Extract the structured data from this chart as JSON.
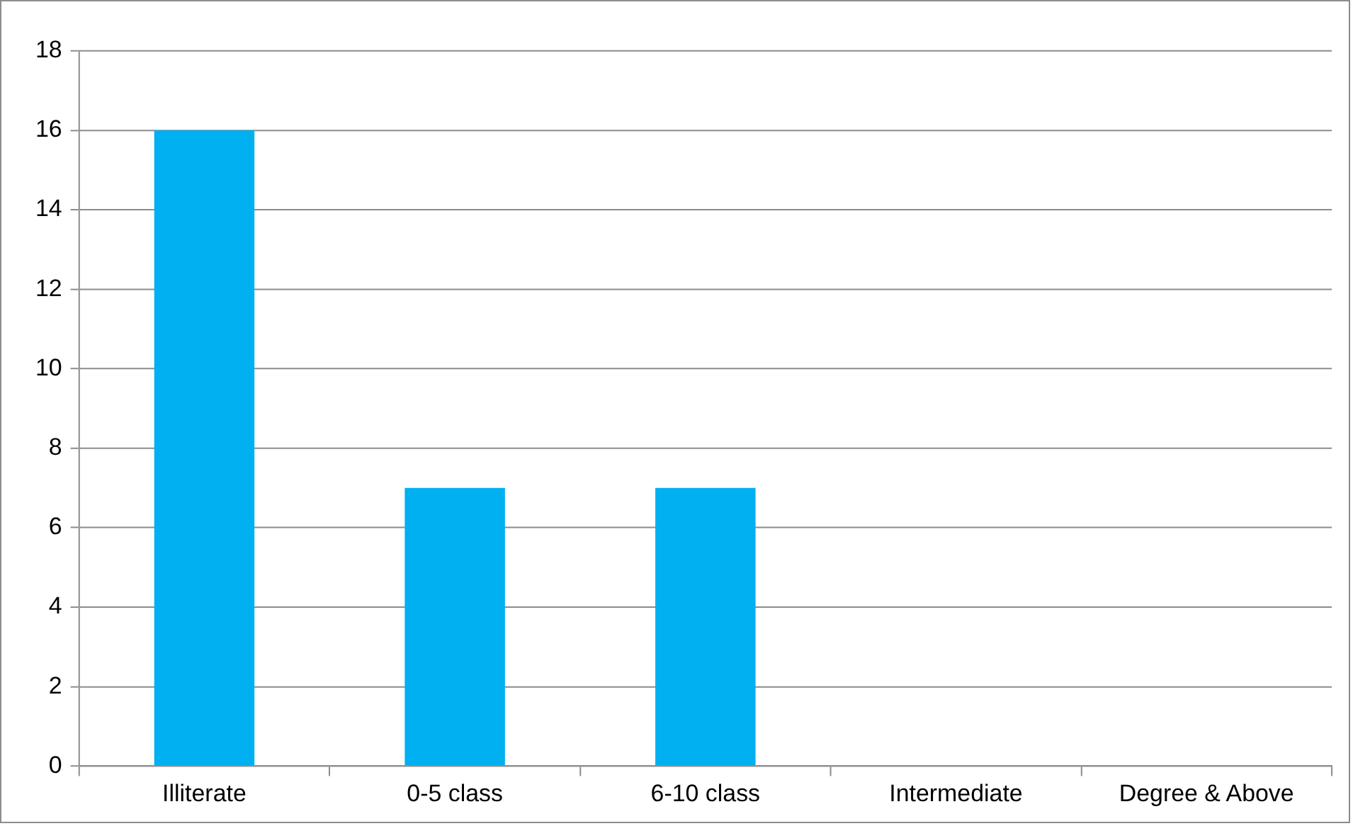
{
  "chart_data": {
    "type": "bar",
    "categories": [
      "Illiterate",
      "0-5 class",
      "6-10 class",
      "Intermediate",
      "Degree & Above"
    ],
    "values": [
      16,
      7,
      7,
      0,
      0
    ],
    "color": "#00b0f0",
    "ylim": [
      0,
      18
    ],
    "yticks": [
      0,
      2,
      4,
      6,
      8,
      10,
      12,
      14,
      16,
      18
    ],
    "grid": "y",
    "legend": false
  }
}
